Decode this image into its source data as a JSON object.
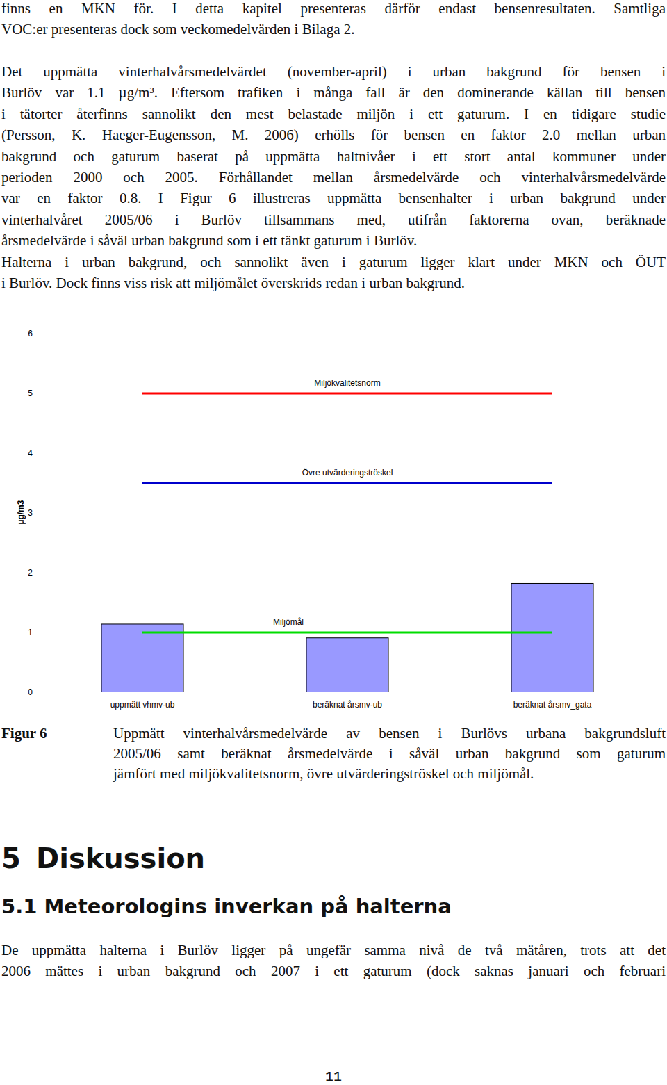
{
  "body_top": {
    "paragraphs": [
      [
        "finns en MKN för. I detta kapitel presenteras därför endast bensenresultaten. Samtliga",
        "VOC:er presenteras dock som veckomedelvärden i Bilaga 2."
      ],
      [
        "Det uppmätta vinterhalvårsmedelvärdet (november-april) i urban bakgrund för bensen i",
        "Burlöv var 1.1 µg/m³. Eftersom trafiken i många fall är den dominerande källan till bensen",
        "i tätorter återfinns sannolikt den mest belastade miljön i ett gaturum. I en tidigare studie",
        "(Persson, K. Haeger-Eugensson, M. 2006) erhölls för bensen en faktor 2.0 mellan urban",
        "bakgrund och gaturum baserat på uppmätta haltnivåer i ett stort antal kommuner under",
        "perioden 2000 och 2005. Förhållandet mellan årsmedelvärde och vinterhalvårsmedelvärde",
        "var en faktor 0.8. I Figur 6 illustreras uppmätta bensenhalter i urban bakgrund under",
        "vinterhalvåret 2005/06 i Burlöv tillsammans med, utifrån faktorerna ovan, beräknade",
        "årsmedelvärde i såväl urban bakgrund som i ett tänkt gaturum i Burlöv."
      ],
      [
        "Halterna i urban bakgrund, och sannolikt även i gaturum ligger klart under MKN och ÖUT",
        "i Burlöv. Dock finns viss risk att miljömålet överskrids redan i urban bakgrund."
      ]
    ]
  },
  "chart_data": {
    "type": "bar",
    "categories": [
      "uppmätt vhmv-ub",
      "beräknat årsmv-ub",
      "beräknat årsmv_gata"
    ],
    "ylabel": "µg/m3",
    "ylim": [
      0,
      6
    ],
    "yticks": [
      0,
      1,
      2,
      3,
      4,
      5,
      6
    ],
    "series": [
      {
        "type": "bar",
        "color": "#9999ff",
        "values": [
          1.14,
          0.91,
          1.82
        ]
      },
      {
        "name": "Miljökvalitetsnorm",
        "type": "line",
        "color": "#ff0000",
        "values": [
          5,
          5,
          5
        ]
      },
      {
        "name": "Övre utvärderingströskel",
        "type": "line",
        "color": "#0000cc",
        "values": [
          3.5,
          3.5,
          3.5
        ]
      },
      {
        "name": "Miljömål",
        "type": "line",
        "color": "#00dd00",
        "values": [
          1,
          1,
          1
        ]
      }
    ]
  },
  "figure_caption": {
    "label": "Figur 6",
    "lines": [
      "Uppmätt vinterhalvårsmedelvärde av bensen i Burlövs urbana bakgrundsluft",
      "2005/06 samt beräknat årsmedelvärde i såväl urban bakgrund som gaturum",
      "jämfört med miljökvalitetsnorm, övre utvärderingströskel och miljömål."
    ]
  },
  "section": {
    "number": "5",
    "title": "Diskussion"
  },
  "subsection": {
    "number": "5.1",
    "title": "Meteorologins inverkan på halterna"
  },
  "body_bottom": {
    "paragraphs": [
      [
        "De uppmätta halterna i Burlöv ligger på ungefär samma nivå de två mätåren, trots att det",
        "2006 mättes i urban bakgrund och 2007 i ett gaturum (dock saknas januari och februari"
      ]
    ]
  },
  "page_number": "11"
}
